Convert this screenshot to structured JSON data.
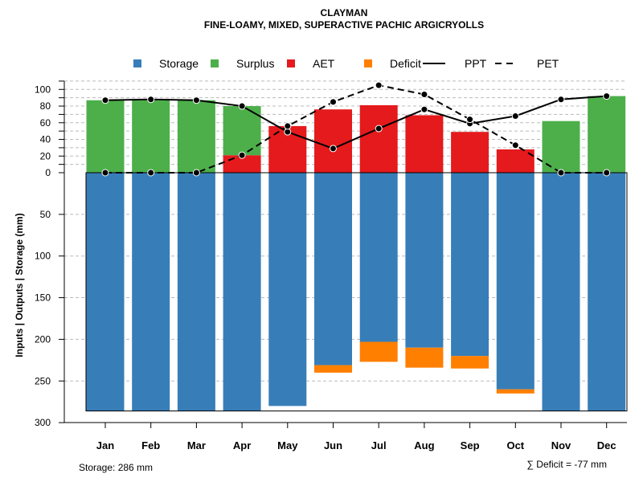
{
  "chart_data": {
    "type": "bar",
    "title": "CLAYMAN",
    "subtitle": "FINE-LOAMY, MIXED, SUPERACTIVE PACHIC ARGICRYOLLS",
    "ylabel": "Inputs | Outputs | Storage    (mm)",
    "categories": [
      "Jan",
      "Feb",
      "Mar",
      "Apr",
      "May",
      "Jun",
      "Jul",
      "Aug",
      "Sep",
      "Oct",
      "Nov",
      "Dec"
    ],
    "upper_ticks": [
      0,
      20,
      40,
      60,
      80,
      100
    ],
    "lower_ticks": [
      50,
      100,
      150,
      200,
      250,
      300
    ],
    "series": [
      {
        "name": "Storage",
        "color": "#377EB8",
        "values": [
          286,
          286,
          286,
          286,
          280,
          231,
          203,
          210,
          220,
          260,
          286,
          286
        ]
      },
      {
        "name": "Surplus",
        "color": "#4DAF4A",
        "values": [
          87,
          88,
          87,
          59,
          0,
          0,
          0,
          0,
          0,
          0,
          62,
          92
        ]
      },
      {
        "name": "AET",
        "color": "#E41A1C",
        "values": [
          0,
          0,
          0,
          21,
          56,
          76,
          81,
          69,
          49,
          28,
          0,
          0
        ]
      },
      {
        "name": "Deficit",
        "color": "#FF7F00",
        "values": [
          0,
          0,
          0,
          0,
          0,
          9,
          24,
          24,
          15,
          5,
          0,
          0
        ]
      },
      {
        "name": "PPT",
        "style": "solid",
        "values": [
          87,
          88,
          87,
          80,
          49,
          29,
          53,
          76,
          59,
          68,
          88,
          92
        ]
      },
      {
        "name": "PET",
        "style": "dashed",
        "values": [
          0,
          0,
          0,
          21,
          56,
          85,
          105,
          94,
          64,
          33,
          0,
          0
        ]
      }
    ],
    "legend": [
      "Storage",
      "Surplus",
      "AET",
      "Deficit",
      "PPT",
      "PET"
    ],
    "legend_placement": "top",
    "storage_note": "Storage: 286 mm",
    "deficit_note": "∑ Deficit = -77 mm"
  }
}
